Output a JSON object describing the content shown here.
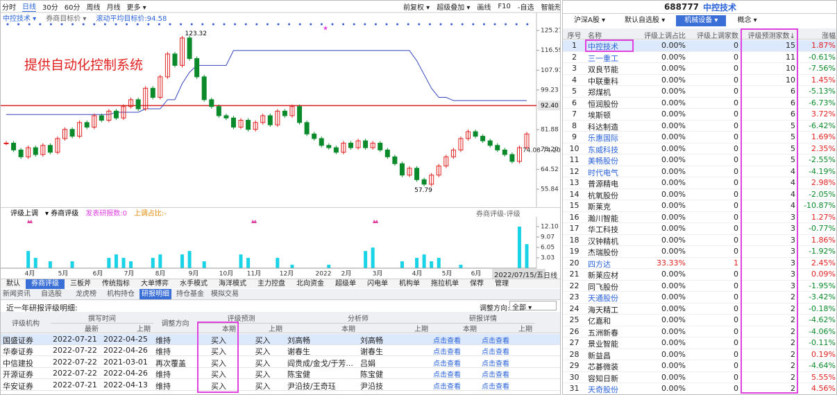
{
  "toolbar": {
    "left": [
      "分时",
      "日线",
      "30分",
      "60分",
      "周线",
      "月线",
      "更多 ▾"
    ],
    "active": 1,
    "right": [
      "前复权 ▾",
      "超级叠加 ▾",
      "画线",
      "F10",
      "-自选",
      "智能形态"
    ]
  },
  "chart_header": {
    "stock": "中控技术 ▾",
    "indicator": "券商目标价 ▾",
    "target": "滚动平均目标价:94.58"
  },
  "annotation": "提供自动化控制系统",
  "price_chart": {
    "ylim": [
      55.84,
      125.27
    ],
    "yticks": [
      125.27,
      116.59,
      107.91,
      99.23,
      81.88,
      {
        "value": 73.2,
        "label": "73.20"
      },
      64.52,
      55.84
    ],
    "ref_line": {
      "value": 92.4,
      "label": "92.40",
      "color": "#d42020"
    },
    "closes": [
      76,
      73,
      70,
      74,
      71,
      75,
      72,
      78,
      82,
      79,
      85,
      83,
      88,
      86,
      90,
      87,
      92,
      95,
      91,
      100,
      96,
      105,
      115,
      110,
      122,
      113,
      105,
      95,
      92,
      88,
      87,
      83,
      86,
      82,
      85,
      88,
      84,
      90,
      88,
      92,
      85,
      80,
      78,
      75,
      74,
      72,
      76,
      74,
      77,
      74,
      76,
      73,
      70,
      67,
      62,
      65,
      60,
      58,
      62,
      66,
      70,
      73,
      78,
      81,
      79,
      77,
      75,
      73,
      71,
      68,
      74,
      80
    ],
    "target": [
      88.5,
      88.5,
      88.5,
      88.5,
      88.5,
      88.5,
      88.5,
      88.5,
      88.5,
      88.5,
      88.5,
      88.5,
      88.5,
      88.5,
      88.5,
      89.5,
      89.5,
      89.5,
      89.5,
      91,
      91,
      91,
      95,
      95,
      102,
      107,
      110,
      110,
      110,
      110,
      110,
      116.5,
      116.5,
      116.5,
      116.5,
      116.5,
      116.5,
      116.5,
      116.5,
      116.5,
      116.5,
      116.5,
      116.5,
      116.5,
      116.5,
      116.5,
      116.5,
      116.5,
      116.5,
      116.5,
      116.5,
      116.5,
      116.5,
      116.5,
      116.5,
      116.5,
      112,
      106,
      100,
      96,
      96,
      94.6,
      94.6,
      94.6,
      94.6,
      94.6,
      94.6,
      94.6,
      94.6,
      94.6,
      94.6,
      94.6
    ],
    "target_color": "#3344bb",
    "up_color": "#e02020",
    "down_color": "#0a8a2a",
    "high_label": {
      "value": 123.32,
      "label": "123.32"
    },
    "low_label": {
      "value": 57.79,
      "label": "57.79"
    },
    "last_label": "74.08-74.20"
  },
  "indicator_bar": {
    "items": [
      "评级上调",
      "▾ 券商评级",
      "发表研报数:0",
      "上调占比:-"
    ],
    "right": "券商评级-评级"
  },
  "volume_chart": {
    "ylim": [
      0,
      12.1
    ],
    "yticks": [
      {
        "value": 12.1,
        "label": "12.10"
      },
      9.07,
      6.05,
      3.03
    ],
    "color": "#19d3e6",
    "values": [
      0,
      0,
      0,
      5,
      3,
      0,
      2,
      0,
      0,
      2,
      0,
      0,
      0,
      0,
      3,
      4,
      3,
      2,
      0,
      0,
      3,
      4,
      0,
      0,
      4,
      5,
      0,
      2,
      0,
      0,
      0,
      0,
      4,
      3,
      0,
      0,
      0,
      3,
      0,
      1,
      0,
      0,
      0,
      0,
      1,
      0,
      0,
      0,
      0,
      5,
      6,
      0,
      0,
      0,
      2,
      0,
      3,
      4,
      2,
      3,
      0,
      0,
      1,
      0,
      0,
      0,
      0,
      0,
      0,
      0,
      12.1,
      7
    ]
  },
  "x_labels": [
    "4月",
    "5月",
    "6月",
    "7月",
    "8月",
    "9月",
    "10月",
    "11月",
    "12月",
    "2022",
    "2月",
    "3月",
    "4月",
    "5月",
    "6月"
  ],
  "date_label": "2022/07/15/五",
  "period": "日线",
  "tabs": [
    "默认",
    "券商评级",
    "三板斧",
    "传统指标",
    "大单博弈",
    "水手模式",
    "海洋模式",
    "主力控盘",
    "北向资金",
    "超级单",
    "闪电单",
    "机构单",
    "拖拉机单",
    "保荐",
    "管理"
  ],
  "active_tab": 1,
  "sub_tabs": [
    "新闻资讯",
    "自选股",
    "龙虎榜",
    "机构持仓",
    "研报明细",
    "持仓基金",
    "模拟交易"
  ],
  "active_sub_tab": 4,
  "research": {
    "title": "近一年研报评级明细:",
    "filter_label": "调整方向:",
    "filter": "全部 ▾",
    "groups": [
      "评级机构",
      "撰写时间",
      "调整方向",
      "评级预测",
      "分析师",
      "研报详情"
    ],
    "sub_headers": [
      "最新",
      "上期",
      "本期",
      "上期",
      "本期",
      "上期",
      "本期",
      "上期"
    ],
    "rows": [
      [
        "国盛证券",
        "2022-07-21",
        "2022-04-25",
        "维持",
        "买入",
        "买入",
        "刘高畅",
        "刘高畅",
        "点击查看",
        "点击查看"
      ],
      [
        "华泰证券",
        "2022-07-22",
        "2022-04-26",
        "维持",
        "买入",
        "买入",
        "谢春生",
        "谢春生",
        "点击查看",
        "点击查看"
      ],
      [
        "中信建投",
        "2022-07-22",
        "2021-03-01",
        "再次覆盖",
        "买入",
        "买入",
        "阎贵成/金戈/于芳...",
        "吕娟",
        "点击查看",
        "点击查看"
      ],
      [
        "开源证券",
        "2022-07-22",
        "2022-04-26",
        "维持",
        "买入",
        "买入",
        "陈宝健",
        "陈宝健",
        "点击查看",
        "点击查看"
      ],
      [
        "华安证券",
        "2022-07-21",
        "2022-04-13",
        "维持",
        "买入",
        "买入",
        "尹沿技/王奇珏",
        "尹沿技",
        "点击查看",
        "点击查看"
      ]
    ]
  },
  "watchlist": {
    "code": "688777",
    "name": "中控技术",
    "tabs": [
      "沪深A股 ▾",
      "默认自选股 ▾",
      "机械设备 ▾",
      "概念 ▾"
    ],
    "active_tab": 2,
    "columns": [
      "序号",
      "名称",
      "评级上调占比",
      "评级上调家数",
      "评级预测家数↓",
      "涨幅"
    ],
    "link_color": "#2a62d8",
    "rows": [
      [
        1,
        "中控技术",
        "0.00%",
        0,
        15,
        "1.87%",
        true
      ],
      [
        2,
        "三一重工",
        "0.00%",
        0,
        11,
        "-0.61%",
        true
      ],
      [
        3,
        "双良节能",
        "0.00%",
        0,
        10,
        "-7.56%",
        false
      ],
      [
        4,
        "中联重科",
        "0.00%",
        0,
        10,
        "1.45%",
        false
      ],
      [
        5,
        "郑煤机",
        "0.00%",
        0,
        6,
        "-5.13%",
        false
      ],
      [
        6,
        "恒润股份",
        "0.00%",
        0,
        6,
        "-6.73%",
        false
      ],
      [
        7,
        "埃斯顿",
        "0.00%",
        0,
        6,
        "3.72%",
        false
      ],
      [
        8,
        "科达制造",
        "0.00%",
        0,
        5,
        "-6.42%",
        false
      ],
      [
        9,
        "乐惠国际",
        "0.00%",
        0,
        5,
        "1.69%",
        true
      ],
      [
        10,
        "东威科技",
        "0.00%",
        0,
        5,
        "2.35%",
        true
      ],
      [
        11,
        "美畅股份",
        "0.00%",
        0,
        5,
        "-2.55%",
        true
      ],
      [
        12,
        "时代电气",
        "0.00%",
        0,
        4,
        "-4.19%",
        true
      ],
      [
        13,
        "普源精电",
        "0.00%",
        0,
        4,
        "2.98%",
        false
      ],
      [
        14,
        "杭氧股份",
        "0.00%",
        0,
        4,
        "-2.05%",
        false
      ],
      [
        15,
        "斯莱克",
        "0.00%",
        0,
        4,
        "-10.87%",
        false
      ],
      [
        16,
        "瀚川智能",
        "0.00%",
        0,
        3,
        "1.27%",
        false
      ],
      [
        17,
        "华工科技",
        "0.00%",
        0,
        3,
        "-0.77%",
        false
      ],
      [
        18,
        "汉钟精机",
        "0.00%",
        0,
        3,
        "1.86%",
        false
      ],
      [
        19,
        "杰瑞股份",
        "0.00%",
        0,
        3,
        "-1.92%",
        false
      ],
      [
        20,
        "四方达",
        "33.33%",
        1,
        3,
        "2.45%",
        true
      ],
      [
        21,
        "新莱应材",
        "0.00%",
        0,
        3,
        "0.09%",
        false
      ],
      [
        22,
        "同飞股份",
        "0.00%",
        0,
        3,
        "-1.95%",
        false
      ],
      [
        23,
        "天通股份",
        "0.00%",
        0,
        2,
        "-3.42%",
        true
      ],
      [
        24,
        "海天精工",
        "0.00%",
        0,
        2,
        "-0.18%",
        false
      ],
      [
        25,
        "亿嘉和",
        "0.00%",
        0,
        2,
        "-4.62%",
        false
      ],
      [
        26,
        "五洲新春",
        "0.00%",
        0,
        2,
        "-4.06%",
        false
      ],
      [
        27,
        "景业智能",
        "0.00%",
        0,
        2,
        "-0.11%",
        false
      ],
      [
        28,
        "新益昌",
        "0.00%",
        0,
        2,
        "0.19%",
        false
      ],
      [
        29,
        "芯碁微装",
        "0.00%",
        0,
        2,
        "-4.64%",
        false
      ],
      [
        30,
        "容知日新",
        "0.00%",
        0,
        2,
        "5.55%",
        false
      ],
      [
        31,
        "天奇股份",
        "0.00%",
        0,
        2,
        "4.56%",
        true
      ]
    ]
  }
}
